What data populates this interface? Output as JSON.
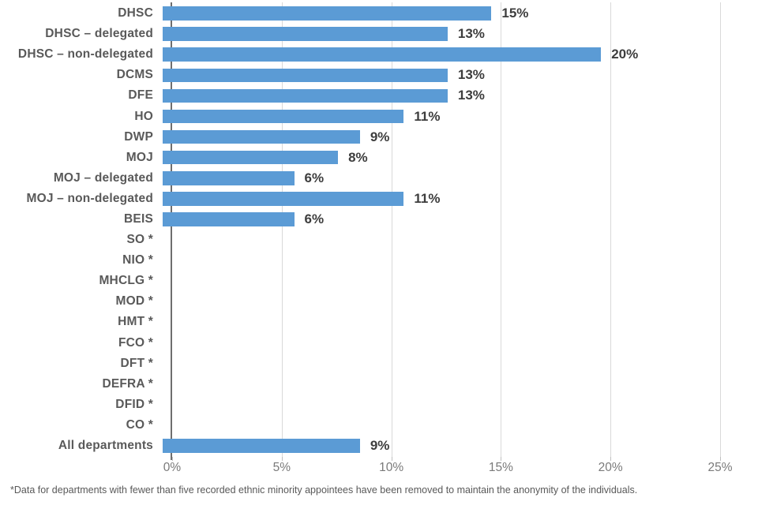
{
  "chart_data": {
    "type": "bar",
    "orientation": "horizontal",
    "title": "",
    "xlabel": "",
    "ylabel": "",
    "xlim": [
      0,
      25
    ],
    "grid": true,
    "legend": false,
    "bar_color": "#5B9BD5",
    "categories": [
      "DHSC",
      "DHSC – delegated",
      "DHSC – non-delegated",
      "DCMS",
      "DFE",
      "HO",
      "DWP",
      "MOJ",
      "MOJ – delegated",
      "MOJ – non-delegated",
      "BEIS",
      "SO *",
      "NIO *",
      "MHCLG *",
      "MOD *",
      "HMT *",
      "FCO *",
      "DFT *",
      "DEFRA *",
      "DFID *",
      "CO *",
      "All departments"
    ],
    "values": [
      15,
      13,
      20,
      13,
      13,
      11,
      9,
      8,
      6,
      11,
      6,
      null,
      null,
      null,
      null,
      null,
      null,
      null,
      null,
      null,
      null,
      9
    ],
    "value_labels": [
      "15%",
      "13%",
      "20%",
      "13%",
      "13%",
      "11%",
      "9%",
      "8%",
      "6%",
      "11%",
      "6%",
      null,
      null,
      null,
      null,
      null,
      null,
      null,
      null,
      null,
      null,
      "9%"
    ],
    "x_ticks": [
      {
        "label": "0%",
        "value": 0
      },
      {
        "label": "5%",
        "value": 5
      },
      {
        "label": "10%",
        "value": 10
      },
      {
        "label": "15%",
        "value": 15
      },
      {
        "label": "20%",
        "value": 20
      },
      {
        "label": "25%",
        "value": 25
      }
    ],
    "footnote": "*Data for departments with fewer than five recorded ethnic minority appointees have been removed to maintain the anonymity of the individuals."
  },
  "colors": {
    "bar": "#5B9BD5",
    "gridline": "#d9d9d9",
    "axis_line": "#6e6e6e",
    "category_label": "#595959",
    "value_label": "#3d3d3d",
    "tick_label": "#7a7a7a",
    "footnote": "#595959"
  }
}
